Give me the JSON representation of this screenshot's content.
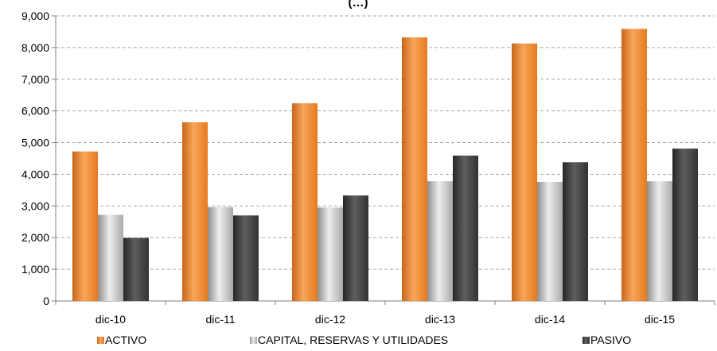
{
  "chart_data": {
    "type": "bar",
    "title": "(…)",
    "categories": [
      "dic-10",
      "dic-11",
      "dic-12",
      "dic-13",
      "dic-14",
      "dic-15"
    ],
    "series": [
      {
        "name": "ACTIVO",
        "color": "#F0882A",
        "values": [
          4720,
          5640,
          6240,
          8320,
          8130,
          8590
        ]
      },
      {
        "name": "CAPITAL, RESERVAS Y UTILIDADES",
        "color": "#BDBDBD",
        "values": [
          2720,
          2960,
          2950,
          3780,
          3760,
          3780
        ]
      },
      {
        "name": "PASIVO",
        "color": "#444444",
        "values": [
          1990,
          2700,
          3330,
          4590,
          4380,
          4810
        ]
      }
    ],
    "ylim": [
      0,
      9000
    ],
    "yticks": [
      "0",
      "1,000",
      "2,000",
      "3,000",
      "4,000",
      "5,000",
      "6,000",
      "7,000",
      "8,000",
      "9,000"
    ],
    "grid": true,
    "legend_position": "bottom"
  }
}
